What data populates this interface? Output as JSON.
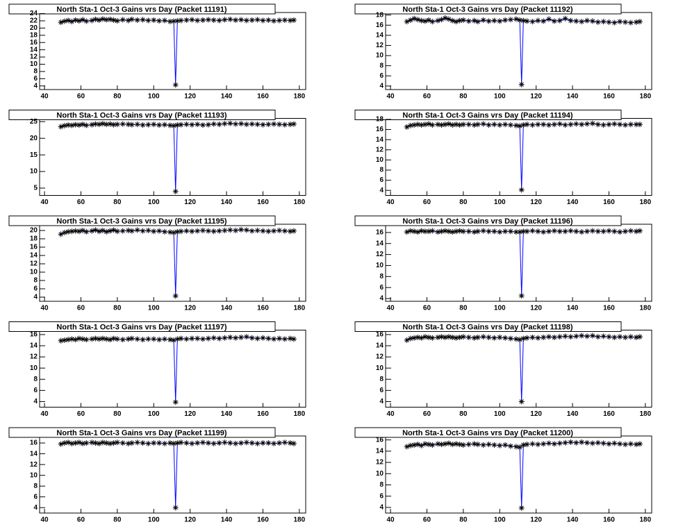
{
  "chart_data": [
    {
      "type": "line",
      "title": "North Sta-1 Oct-3 Gains vrs Day (Packet 11191)",
      "line_color": "#0000ff",
      "marker_color": "#000000",
      "x": [
        49,
        51,
        53,
        55,
        57,
        59,
        61,
        63,
        66,
        68,
        70,
        72,
        74,
        76,
        78,
        80,
        83,
        86,
        88,
        91,
        94,
        97,
        100,
        103,
        106,
        109,
        111,
        112,
        113,
        115,
        118,
        121,
        124,
        127,
        130,
        133,
        136,
        139,
        142,
        145,
        148,
        151,
        154,
        157,
        160,
        163,
        166,
        169,
        172,
        175,
        177
      ],
      "values": [
        21.6,
        21.9,
        22.1,
        21.8,
        22.2,
        22.0,
        22.3,
        21.9,
        22.1,
        22.4,
        22.2,
        22.5,
        22.3,
        22.4,
        22.2,
        22.0,
        22.3,
        22.1,
        22.4,
        22.2,
        22.3,
        22.1,
        22.2,
        22.0,
        22.1,
        21.8,
        21.9,
        4.3,
        22.0,
        22.1,
        22.2,
        22.3,
        22.1,
        22.2,
        22.3,
        22.2,
        22.1,
        22.3,
        22.4,
        22.2,
        22.3,
        22.1,
        22.2,
        22.3,
        22.1,
        22.2,
        22.0,
        22.1,
        22.2,
        22.1,
        22.2
      ],
      "xlim": [
        37.3,
        183.5
      ],
      "xticks": [
        40,
        60,
        80,
        100,
        120,
        140,
        160,
        180
      ],
      "ylim": [
        3,
        24.3
      ],
      "yticks": [
        4,
        6,
        8,
        10,
        12,
        14,
        16,
        18,
        20,
        22,
        24
      ]
    },
    {
      "type": "line",
      "title": "North Sta-1 Oct-3 Gains vrs Day (Packet 11192)",
      "line_color": "#0000ff",
      "marker_color": "#000000",
      "x": [
        49,
        51,
        53,
        55,
        57,
        59,
        61,
        63,
        66,
        68,
        70,
        72,
        74,
        76,
        78,
        80,
        83,
        86,
        88,
        91,
        94,
        97,
        100,
        103,
        106,
        109,
        111,
        112,
        113,
        115,
        118,
        121,
        124,
        127,
        130,
        133,
        136,
        139,
        142,
        145,
        148,
        151,
        154,
        157,
        160,
        163,
        166,
        169,
        172,
        175,
        177
      ],
      "values": [
        16.7,
        17.0,
        17.3,
        17.1,
        16.9,
        16.8,
        17.0,
        16.7,
        16.9,
        17.1,
        17.4,
        17.2,
        16.9,
        16.7,
        16.9,
        17.0,
        16.8,
        16.9,
        16.7,
        17.0,
        16.8,
        16.9,
        16.8,
        17.0,
        17.1,
        17.2,
        17.0,
        4.3,
        16.9,
        16.8,
        16.7,
        16.9,
        16.8,
        17.2,
        16.8,
        16.9,
        17.3,
        16.9,
        16.8,
        16.7,
        16.9,
        16.8,
        16.6,
        16.7,
        16.6,
        16.5,
        16.7,
        16.6,
        16.5,
        16.6,
        16.7
      ],
      "xlim": [
        37.3,
        183.5
      ],
      "xticks": [
        40,
        60,
        80,
        100,
        120,
        140,
        160,
        180
      ],
      "ylim": [
        3.3,
        18.5
      ],
      "yticks": [
        4,
        6,
        8,
        10,
        12,
        14,
        16,
        18
      ]
    },
    {
      "type": "line",
      "title": "North Sta-1 Oct-3 Gains vrs Day (Packet 11193)",
      "line_color": "#0000ff",
      "marker_color": "#000000",
      "x": [
        49,
        51,
        53,
        55,
        57,
        59,
        61,
        63,
        66,
        68,
        70,
        72,
        74,
        76,
        78,
        80,
        83,
        86,
        88,
        91,
        94,
        97,
        100,
        103,
        106,
        109,
        111,
        112,
        113,
        115,
        118,
        121,
        124,
        127,
        130,
        133,
        136,
        139,
        142,
        145,
        148,
        151,
        154,
        157,
        160,
        163,
        166,
        169,
        172,
        175,
        177
      ],
      "values": [
        23.5,
        23.8,
        24.0,
        23.9,
        24.1,
        24.0,
        24.2,
        23.9,
        24.1,
        24.3,
        24.2,
        24.4,
        24.2,
        24.3,
        24.1,
        24.2,
        24.3,
        24.2,
        24.1,
        24.2,
        24.0,
        24.1,
        24.2,
        24.0,
        24.1,
        23.9,
        23.8,
        4.0,
        24.0,
        24.1,
        24.2,
        24.1,
        24.2,
        24.0,
        24.1,
        24.3,
        24.2,
        24.4,
        24.5,
        24.3,
        24.4,
        24.2,
        24.3,
        24.2,
        24.1,
        24.2,
        24.3,
        24.2,
        24.1,
        24.2,
        24.3
      ],
      "xlim": [
        37.3,
        183.5
      ],
      "xticks": [
        40,
        60,
        80,
        100,
        120,
        140,
        160,
        180
      ],
      "ylim": [
        2.8,
        26
      ],
      "yticks": [
        5,
        10,
        15,
        20,
        25
      ]
    },
    {
      "type": "line",
      "title": "North Sta-1 Oct-3 Gains vrs Day (Packet 11194)",
      "line_color": "#0000ff",
      "marker_color": "#000000",
      "x": [
        49,
        51,
        53,
        55,
        57,
        59,
        61,
        63,
        66,
        68,
        70,
        72,
        74,
        76,
        78,
        80,
        83,
        86,
        88,
        91,
        94,
        97,
        100,
        103,
        106,
        109,
        111,
        112,
        113,
        115,
        118,
        121,
        124,
        127,
        130,
        133,
        136,
        139,
        142,
        145,
        148,
        151,
        154,
        157,
        160,
        163,
        166,
        169,
        172,
        175,
        177
      ],
      "values": [
        16.5,
        16.8,
        16.9,
        17.0,
        16.9,
        17.0,
        17.1,
        16.9,
        17.0,
        16.9,
        17.0,
        17.1,
        16.9,
        17.0,
        16.9,
        17.0,
        17.0,
        16.9,
        17.0,
        17.1,
        16.9,
        17.0,
        16.9,
        17.0,
        16.9,
        16.8,
        16.7,
        4.1,
        16.9,
        17.0,
        16.9,
        17.0,
        17.0,
        16.9,
        17.0,
        17.1,
        16.9,
        17.0,
        17.1,
        17.0,
        17.1,
        17.2,
        17.0,
        16.9,
        17.0,
        17.1,
        17.0,
        16.9,
        17.0,
        17.0,
        17.0
      ],
      "xlim": [
        37.3,
        183.5
      ],
      "xticks": [
        40,
        60,
        80,
        100,
        120,
        140,
        160,
        180
      ],
      "ylim": [
        3,
        18.2
      ],
      "yticks": [
        4,
        6,
        8,
        10,
        12,
        14,
        16,
        18
      ]
    },
    {
      "type": "line",
      "title": "North Sta-1 Oct-3 Gains vrs Day (Packet 11195)",
      "line_color": "#0000ff",
      "marker_color": "#000000",
      "x": [
        49,
        51,
        53,
        55,
        57,
        59,
        61,
        63,
        66,
        68,
        70,
        72,
        74,
        76,
        78,
        80,
        83,
        86,
        88,
        91,
        94,
        97,
        100,
        103,
        106,
        109,
        111,
        112,
        113,
        115,
        118,
        121,
        124,
        127,
        130,
        133,
        136,
        139,
        142,
        145,
        148,
        151,
        154,
        157,
        160,
        163,
        166,
        169,
        172,
        175,
        177
      ],
      "values": [
        19.1,
        19.5,
        19.7,
        19.8,
        19.9,
        19.8,
        20.0,
        19.7,
        19.9,
        20.1,
        19.8,
        20.0,
        19.7,
        19.9,
        20.1,
        19.8,
        19.9,
        20.0,
        19.9,
        20.1,
        19.9,
        20.0,
        19.8,
        19.9,
        19.7,
        19.6,
        19.5,
        4.3,
        19.7,
        19.8,
        19.9,
        19.8,
        19.9,
        20.0,
        19.9,
        19.8,
        19.9,
        20.0,
        20.1,
        20.0,
        20.2,
        20.1,
        19.9,
        20.0,
        19.9,
        19.8,
        19.9,
        20.0,
        19.9,
        19.8,
        19.9
      ],
      "xlim": [
        37.3,
        183.5
      ],
      "xticks": [
        40,
        60,
        80,
        100,
        120,
        140,
        160,
        180
      ],
      "ylim": [
        3,
        21.5
      ],
      "yticks": [
        4,
        6,
        8,
        10,
        12,
        14,
        16,
        18,
        20
      ]
    },
    {
      "type": "line",
      "title": "North Sta-1 Oct-3 Gains vrs Day (Packet 11196)",
      "line_color": "#0000ff",
      "marker_color": "#000000",
      "x": [
        49,
        51,
        53,
        55,
        57,
        59,
        61,
        63,
        66,
        68,
        70,
        72,
        74,
        76,
        78,
        80,
        83,
        86,
        88,
        91,
        94,
        97,
        100,
        103,
        106,
        109,
        111,
        112,
        113,
        115,
        118,
        121,
        124,
        127,
        130,
        133,
        136,
        139,
        142,
        145,
        148,
        151,
        154,
        157,
        160,
        163,
        166,
        169,
        172,
        175,
        177
      ],
      "values": [
        16.1,
        16.3,
        16.2,
        16.1,
        16.3,
        16.2,
        16.2,
        16.3,
        16.1,
        16.2,
        16.3,
        16.2,
        16.1,
        16.2,
        16.3,
        16.2,
        16.2,
        16.1,
        16.2,
        16.3,
        16.2,
        16.2,
        16.1,
        16.2,
        16.2,
        16.1,
        16.1,
        4.5,
        16.2,
        16.2,
        16.3,
        16.2,
        16.1,
        16.2,
        16.3,
        16.2,
        16.2,
        16.3,
        16.2,
        16.1,
        16.2,
        16.3,
        16.2,
        16.2,
        16.3,
        16.2,
        16.1,
        16.2,
        16.3,
        16.2,
        16.3
      ],
      "xlim": [
        37.3,
        183.5
      ],
      "xticks": [
        40,
        60,
        80,
        100,
        120,
        140,
        160,
        180
      ],
      "ylim": [
        3.5,
        17.5
      ],
      "yticks": [
        4,
        6,
        8,
        10,
        12,
        14,
        16
      ]
    },
    {
      "type": "line",
      "title": "North Sta-1 Oct-3 Gains vrs Day (Packet 11197)",
      "line_color": "#0000ff",
      "marker_color": "#000000",
      "x": [
        49,
        51,
        53,
        55,
        57,
        59,
        61,
        63,
        66,
        68,
        70,
        72,
        74,
        76,
        78,
        80,
        83,
        86,
        88,
        91,
        94,
        97,
        100,
        103,
        106,
        109,
        111,
        112,
        113,
        115,
        118,
        121,
        124,
        127,
        130,
        133,
        136,
        139,
        142,
        145,
        148,
        151,
        154,
        157,
        160,
        163,
        166,
        169,
        172,
        175,
        177
      ],
      "values": [
        14.9,
        15.0,
        15.1,
        15.2,
        15.1,
        15.3,
        15.2,
        15.1,
        15.2,
        15.3,
        15.2,
        15.3,
        15.2,
        15.1,
        15.3,
        15.2,
        15.1,
        15.2,
        15.3,
        15.2,
        15.1,
        15.2,
        15.2,
        15.1,
        15.2,
        15.1,
        15.0,
        3.9,
        15.2,
        15.3,
        15.2,
        15.3,
        15.3,
        15.2,
        15.3,
        15.4,
        15.3,
        15.4,
        15.5,
        15.4,
        15.5,
        15.6,
        15.4,
        15.3,
        15.4,
        15.3,
        15.2,
        15.3,
        15.2,
        15.3,
        15.2
      ],
      "xlim": [
        37.3,
        183.5
      ],
      "xticks": [
        40,
        60,
        80,
        100,
        120,
        140,
        160,
        180
      ],
      "ylim": [
        3,
        16.8
      ],
      "yticks": [
        4,
        6,
        8,
        10,
        12,
        14,
        16
      ]
    },
    {
      "type": "line",
      "title": "North Sta-1 Oct-3 Gains vrs Day (Packet 11198)",
      "line_color": "#0000ff",
      "marker_color": "#000000",
      "x": [
        49,
        51,
        53,
        55,
        57,
        59,
        61,
        63,
        66,
        68,
        70,
        72,
        74,
        76,
        78,
        80,
        83,
        86,
        88,
        91,
        94,
        97,
        100,
        103,
        106,
        109,
        111,
        112,
        113,
        115,
        118,
        121,
        124,
        127,
        130,
        133,
        136,
        139,
        142,
        145,
        148,
        151,
        154,
        157,
        160,
        163,
        166,
        169,
        172,
        175,
        177
      ],
      "values": [
        15.0,
        15.3,
        15.4,
        15.5,
        15.4,
        15.6,
        15.5,
        15.4,
        15.5,
        15.6,
        15.5,
        15.6,
        15.5,
        15.4,
        15.5,
        15.6,
        15.5,
        15.4,
        15.5,
        15.6,
        15.5,
        15.4,
        15.5,
        15.4,
        15.3,
        15.2,
        15.1,
        4.0,
        15.3,
        15.4,
        15.5,
        15.4,
        15.5,
        15.6,
        15.5,
        15.6,
        15.7,
        15.6,
        15.7,
        15.8,
        15.7,
        15.8,
        15.6,
        15.7,
        15.6,
        15.5,
        15.6,
        15.5,
        15.6,
        15.5,
        15.6
      ],
      "xlim": [
        37.3,
        183.5
      ],
      "xticks": [
        40,
        60,
        80,
        100,
        120,
        140,
        160,
        180
      ],
      "ylim": [
        3,
        16.8
      ],
      "yticks": [
        4,
        6,
        8,
        10,
        12,
        14,
        16
      ]
    },
    {
      "type": "line",
      "title": "North Sta-1 Oct-3 Gains vrs Day (Packet 11199)",
      "line_color": "#0000ff",
      "marker_color": "#000000",
      "x": [
        49,
        51,
        53,
        55,
        57,
        59,
        61,
        63,
        66,
        68,
        70,
        72,
        74,
        76,
        78,
        80,
        83,
        86,
        88,
        91,
        94,
        97,
        100,
        103,
        106,
        109,
        111,
        112,
        113,
        115,
        118,
        121,
        124,
        127,
        130,
        133,
        136,
        139,
        142,
        145,
        148,
        151,
        154,
        157,
        160,
        163,
        166,
        169,
        172,
        175,
        177
      ],
      "values": [
        15.8,
        16.0,
        16.1,
        15.9,
        16.0,
        16.1,
        15.9,
        16.0,
        16.1,
        16.0,
        15.9,
        16.1,
        16.0,
        15.9,
        16.0,
        16.1,
        16.0,
        15.9,
        16.0,
        16.1,
        16.0,
        15.9,
        16.0,
        16.0,
        15.9,
        16.0,
        15.9,
        4.0,
        16.0,
        16.1,
        16.0,
        15.9,
        16.0,
        16.1,
        16.0,
        15.9,
        16.0,
        16.1,
        16.0,
        15.9,
        16.0,
        16.1,
        16.0,
        15.9,
        16.0,
        16.0,
        15.9,
        16.0,
        16.1,
        16.0,
        15.9
      ],
      "xlim": [
        37.3,
        183.5
      ],
      "xticks": [
        40,
        60,
        80,
        100,
        120,
        140,
        160,
        180
      ],
      "ylim": [
        3,
        17.3
      ],
      "yticks": [
        4,
        6,
        8,
        10,
        12,
        14,
        16
      ]
    },
    {
      "type": "line",
      "title": "North Sta-1 Oct-3 Gains vrs Day (Packet 11200)",
      "line_color": "#0000ff",
      "marker_color": "#000000",
      "x": [
        49,
        51,
        53,
        55,
        57,
        59,
        61,
        63,
        66,
        68,
        70,
        72,
        74,
        76,
        78,
        80,
        83,
        86,
        88,
        91,
        94,
        97,
        100,
        103,
        106,
        109,
        111,
        112,
        113,
        115,
        118,
        121,
        124,
        127,
        130,
        133,
        136,
        139,
        142,
        145,
        148,
        151,
        154,
        157,
        160,
        163,
        166,
        169,
        172,
        175,
        177
      ],
      "values": [
        14.8,
        15.0,
        15.1,
        15.2,
        15.0,
        15.3,
        15.2,
        15.1,
        15.3,
        15.2,
        15.3,
        15.4,
        15.2,
        15.3,
        15.2,
        15.1,
        15.2,
        15.3,
        15.2,
        15.1,
        15.2,
        15.1,
        15.0,
        15.1,
        14.9,
        14.8,
        14.7,
        3.9,
        15.1,
        15.2,
        15.3,
        15.2,
        15.3,
        15.4,
        15.3,
        15.4,
        15.5,
        15.6,
        15.5,
        15.6,
        15.5,
        15.4,
        15.5,
        15.4,
        15.3,
        15.4,
        15.3,
        15.2,
        15.3,
        15.2,
        15.3
      ],
      "xlim": [
        37.3,
        183.5
      ],
      "xticks": [
        40,
        60,
        80,
        100,
        120,
        140,
        160,
        180
      ],
      "ylim": [
        3,
        16.7
      ],
      "yticks": [
        4,
        6,
        8,
        10,
        12,
        14,
        16
      ]
    }
  ]
}
